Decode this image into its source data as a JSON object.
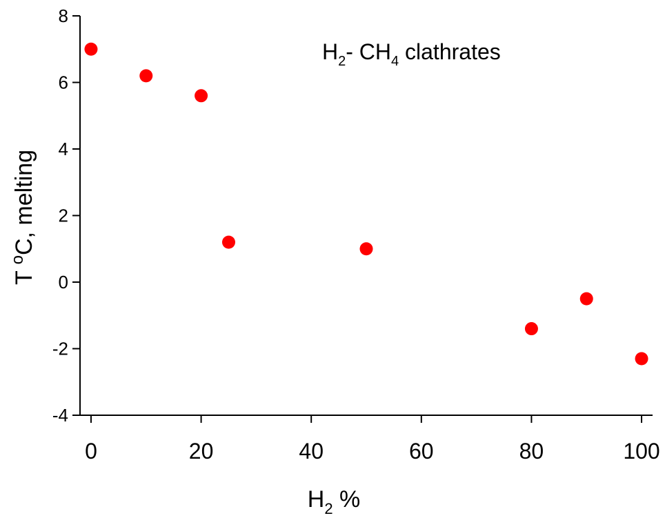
{
  "chart_data": {
    "type": "scatter",
    "title": "",
    "annotation": {
      "parts": [
        "H",
        "2",
        "- CH",
        "4",
        " clathrates"
      ]
    },
    "xlabel": {
      "parts": [
        "H",
        "2",
        " %"
      ]
    },
    "ylabel": {
      "parts": [
        "T ",
        "o",
        "C, melting"
      ]
    },
    "xlim": [
      -2,
      102
    ],
    "ylim": [
      -4,
      8
    ],
    "xticks": [
      0,
      20,
      40,
      60,
      80,
      100
    ],
    "yticks": [
      -4,
      -2,
      0,
      2,
      4,
      6,
      8
    ],
    "grid": false,
    "marker_color": "#ff0000",
    "series": [
      {
        "points": [
          {
            "x": 0,
            "y": 7.0
          },
          {
            "x": 10,
            "y": 6.2
          },
          {
            "x": 20,
            "y": 5.6
          },
          {
            "x": 25,
            "y": 1.2
          },
          {
            "x": 50,
            "y": 1.0
          },
          {
            "x": 80,
            "y": -1.4
          },
          {
            "x": 90,
            "y": -0.5
          },
          {
            "x": 100,
            "y": -2.3
          }
        ]
      }
    ]
  }
}
